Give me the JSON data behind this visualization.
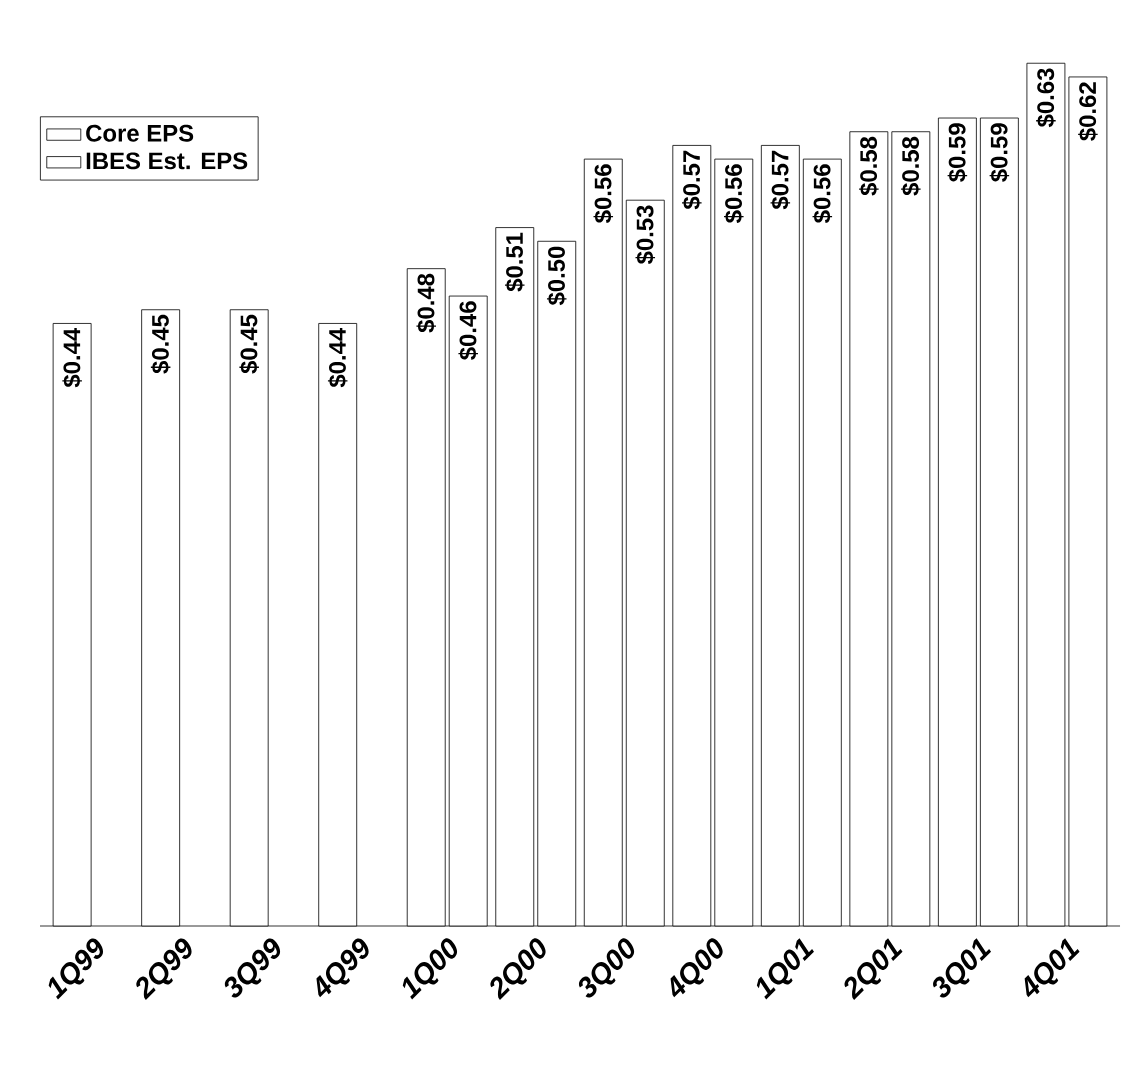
{
  "chart_data": {
    "type": "bar",
    "categories": [
      "1Q99",
      "2Q99",
      "3Q99",
      "4Q99",
      "1Q00",
      "2Q00",
      "3Q00",
      "4Q00",
      "1Q01",
      "2Q01",
      "3Q01",
      "4Q01"
    ],
    "series": [
      {
        "name": "Core EPS",
        "color": "#ffffff",
        "values": [
          0.44,
          0.45,
          0.45,
          0.44,
          0.48,
          0.51,
          0.56,
          0.57,
          0.57,
          0.58,
          0.59,
          0.63
        ],
        "value_labels": [
          "$0.44",
          "$0.45",
          "$0.45",
          "$0.44",
          "$0.48",
          "$0.51",
          "$0.56",
          "$0.57",
          "$0.57",
          "$0.58",
          "$0.59",
          "$0.63"
        ]
      },
      {
        "name": "IBES Est. EPS",
        "color": "#ffffff",
        "values": [
          null,
          null,
          null,
          null,
          0.46,
          0.5,
          0.53,
          0.56,
          0.56,
          0.58,
          0.59,
          0.62
        ],
        "value_labels": [
          null,
          null,
          null,
          null,
          "$0.46",
          "$0.50",
          "$0.53",
          "$0.56",
          "$0.56",
          "$0.58",
          "$0.59",
          "$0.62"
        ]
      }
    ],
    "legend": "top left",
    "tick_labels": "x"
  }
}
